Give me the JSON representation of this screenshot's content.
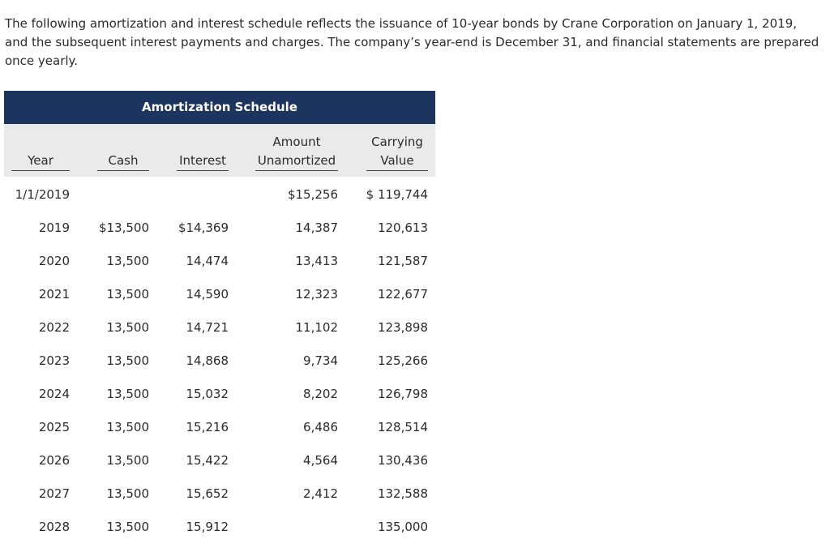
{
  "intro": "The following amortization and interest schedule reflects the issuance of 10-year bonds by Crane Corporation on January 1, 2019, and the subsequent interest payments and charges. The company’s year-end is December 31, and financial statements are prepared once yearly.",
  "table": {
    "title": "Amortization Schedule",
    "headers": {
      "year": "Year",
      "cash": "Cash",
      "interest": "Interest",
      "amount_unamortized": "Amount Unamortized",
      "carrying_value": "Carrying Value"
    },
    "rows": [
      {
        "year": "1/1/2019",
        "amount_unamortized": "$15,256",
        "carrying_value": "$ 119,744"
      },
      {
        "year": "2019",
        "cash": "$13,500",
        "interest": "$14,369",
        "amount_unamortized": "14,387",
        "carrying_value": "120,613"
      },
      {
        "year": "2020",
        "cash": "13,500",
        "interest": "14,474",
        "amount_unamortized": "13,413",
        "carrying_value": "121,587"
      },
      {
        "year": "2021",
        "cash": "13,500",
        "interest": "14,590",
        "amount_unamortized": "12,323",
        "carrying_value": "122,677"
      },
      {
        "year": "2022",
        "cash": "13,500",
        "interest": "14,721",
        "amount_unamortized": "11,102",
        "carrying_value": "123,898"
      },
      {
        "year": "2023",
        "cash": "13,500",
        "interest": "14,868",
        "amount_unamortized": "9,734",
        "carrying_value": "125,266"
      },
      {
        "year": "2024",
        "cash": "13,500",
        "interest": "15,032",
        "amount_unamortized": "8,202",
        "carrying_value": "126,798"
      },
      {
        "year": "2025",
        "cash": "13,500",
        "interest": "15,216",
        "amount_unamortized": "6,486",
        "carrying_value": "128,514"
      },
      {
        "year": "2026",
        "cash": "13,500",
        "interest": "15,422",
        "amount_unamortized": "4,564",
        "carrying_value": "130,436"
      },
      {
        "year": "2027",
        "cash": "13,500",
        "interest": "15,652",
        "amount_unamortized": "2,412",
        "carrying_value": "132,588"
      },
      {
        "year": "2028",
        "cash": "13,500",
        "interest": "15,912",
        "carrying_value": "135,000"
      }
    ]
  }
}
